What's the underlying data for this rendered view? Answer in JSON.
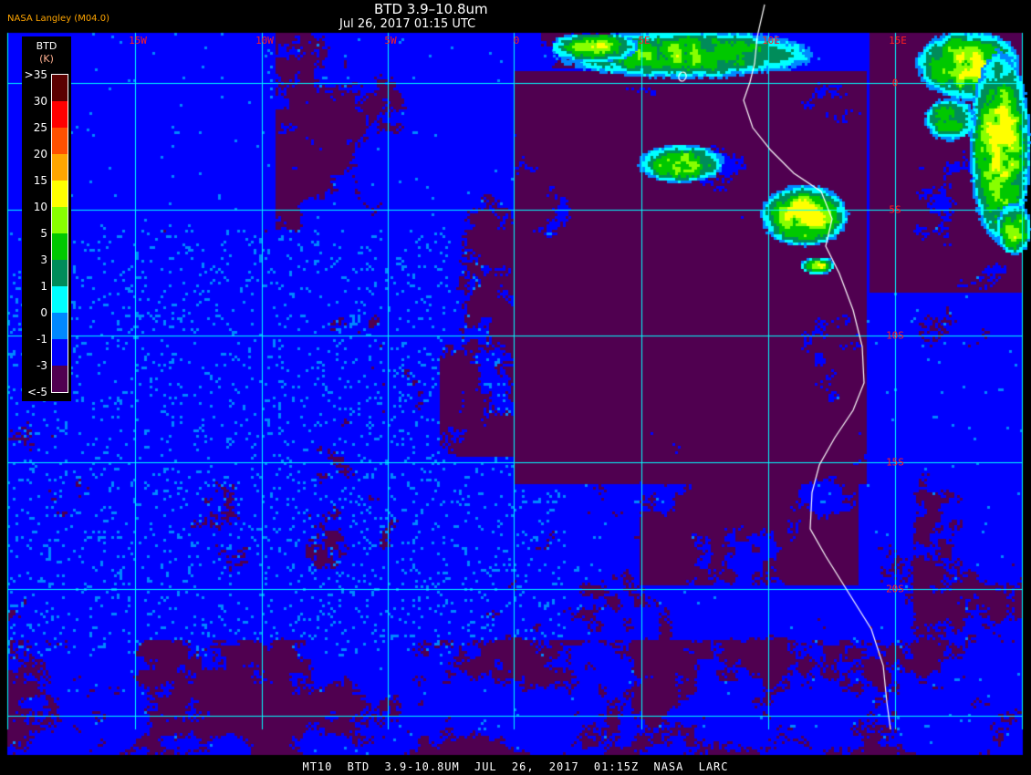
{
  "header": {
    "title": "BTD 3.9–10.8um",
    "datetime": "Jul 26, 2017 01:15 UTC",
    "organization": "NASA Langley (M04.0)"
  },
  "map": {
    "longitude_labels": [
      "15W",
      "10W",
      "5W",
      "0",
      "5E",
      "10E",
      "15E"
    ],
    "latitude_labels": [
      "0",
      "5S",
      "10S",
      "15S",
      "20S"
    ],
    "grid_color": "#00ffff",
    "coastline_color": "#ffffff",
    "label_color": "#ff2020"
  },
  "legend": {
    "title": "BTD",
    "unit": "(K)",
    "labels": [
      ">35",
      "30",
      "25",
      "20",
      "15",
      "10",
      "5",
      "3",
      "1",
      "0",
      "-1",
      "-3",
      "<-5"
    ],
    "colors": [
      "#5a0000",
      "#ff0000",
      "#ff5000",
      "#ffa500",
      "#ffff00",
      "#88ff00",
      "#00c800",
      "#008c5a",
      "#00ffff",
      "#0088ff",
      "#0000ff",
      "#500050"
    ]
  },
  "caption": "MT10 BTD 3.9-10.8UM JUL 26, 2017 01:15Z NASA LARC"
}
